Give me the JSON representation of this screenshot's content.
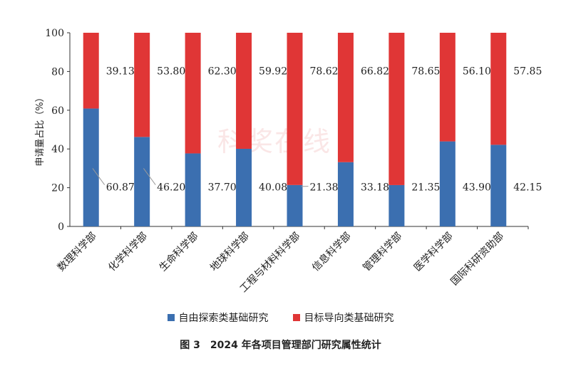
{
  "watermark": "科奖在线",
  "caption": "图 3　2024 年各项目管理部门研究属性统计",
  "chart_data": {
    "type": "bar",
    "stacked": true,
    "ylabel": "申请量占比（%）",
    "ylim": [
      0,
      100
    ],
    "yticks": [
      0,
      20,
      40,
      60,
      80,
      100
    ],
    "categories": [
      "数理科学部",
      "化学科学部",
      "生命科学部",
      "地球科学部",
      "工程与材料科学部",
      "信息科学部",
      "管理科学部",
      "医学科学部",
      "国际科研资助部"
    ],
    "series": [
      {
        "name": "自由探索类基础研究",
        "color": "#3b6fb0",
        "values": [
          60.87,
          46.2,
          37.7,
          40.08,
          21.38,
          33.18,
          21.35,
          43.9,
          42.15
        ]
      },
      {
        "name": "目标导向类基础研究",
        "color": "#e03636",
        "values": [
          39.13,
          53.8,
          62.3,
          59.92,
          78.62,
          66.82,
          78.65,
          56.1,
          57.85
        ]
      }
    ],
    "lower_labels": [
      "60.87",
      "46.20",
      "37.70",
      "40.08",
      "21.38",
      "33.18",
      "21.35",
      "43.90",
      "42.15"
    ],
    "upper_labels": [
      "39.13",
      "53.80",
      "62.30",
      "59.92",
      "78.62",
      "66.82",
      "78.65",
      "56.10",
      "57.85"
    ],
    "legend_position": "bottom",
    "grid": false
  }
}
